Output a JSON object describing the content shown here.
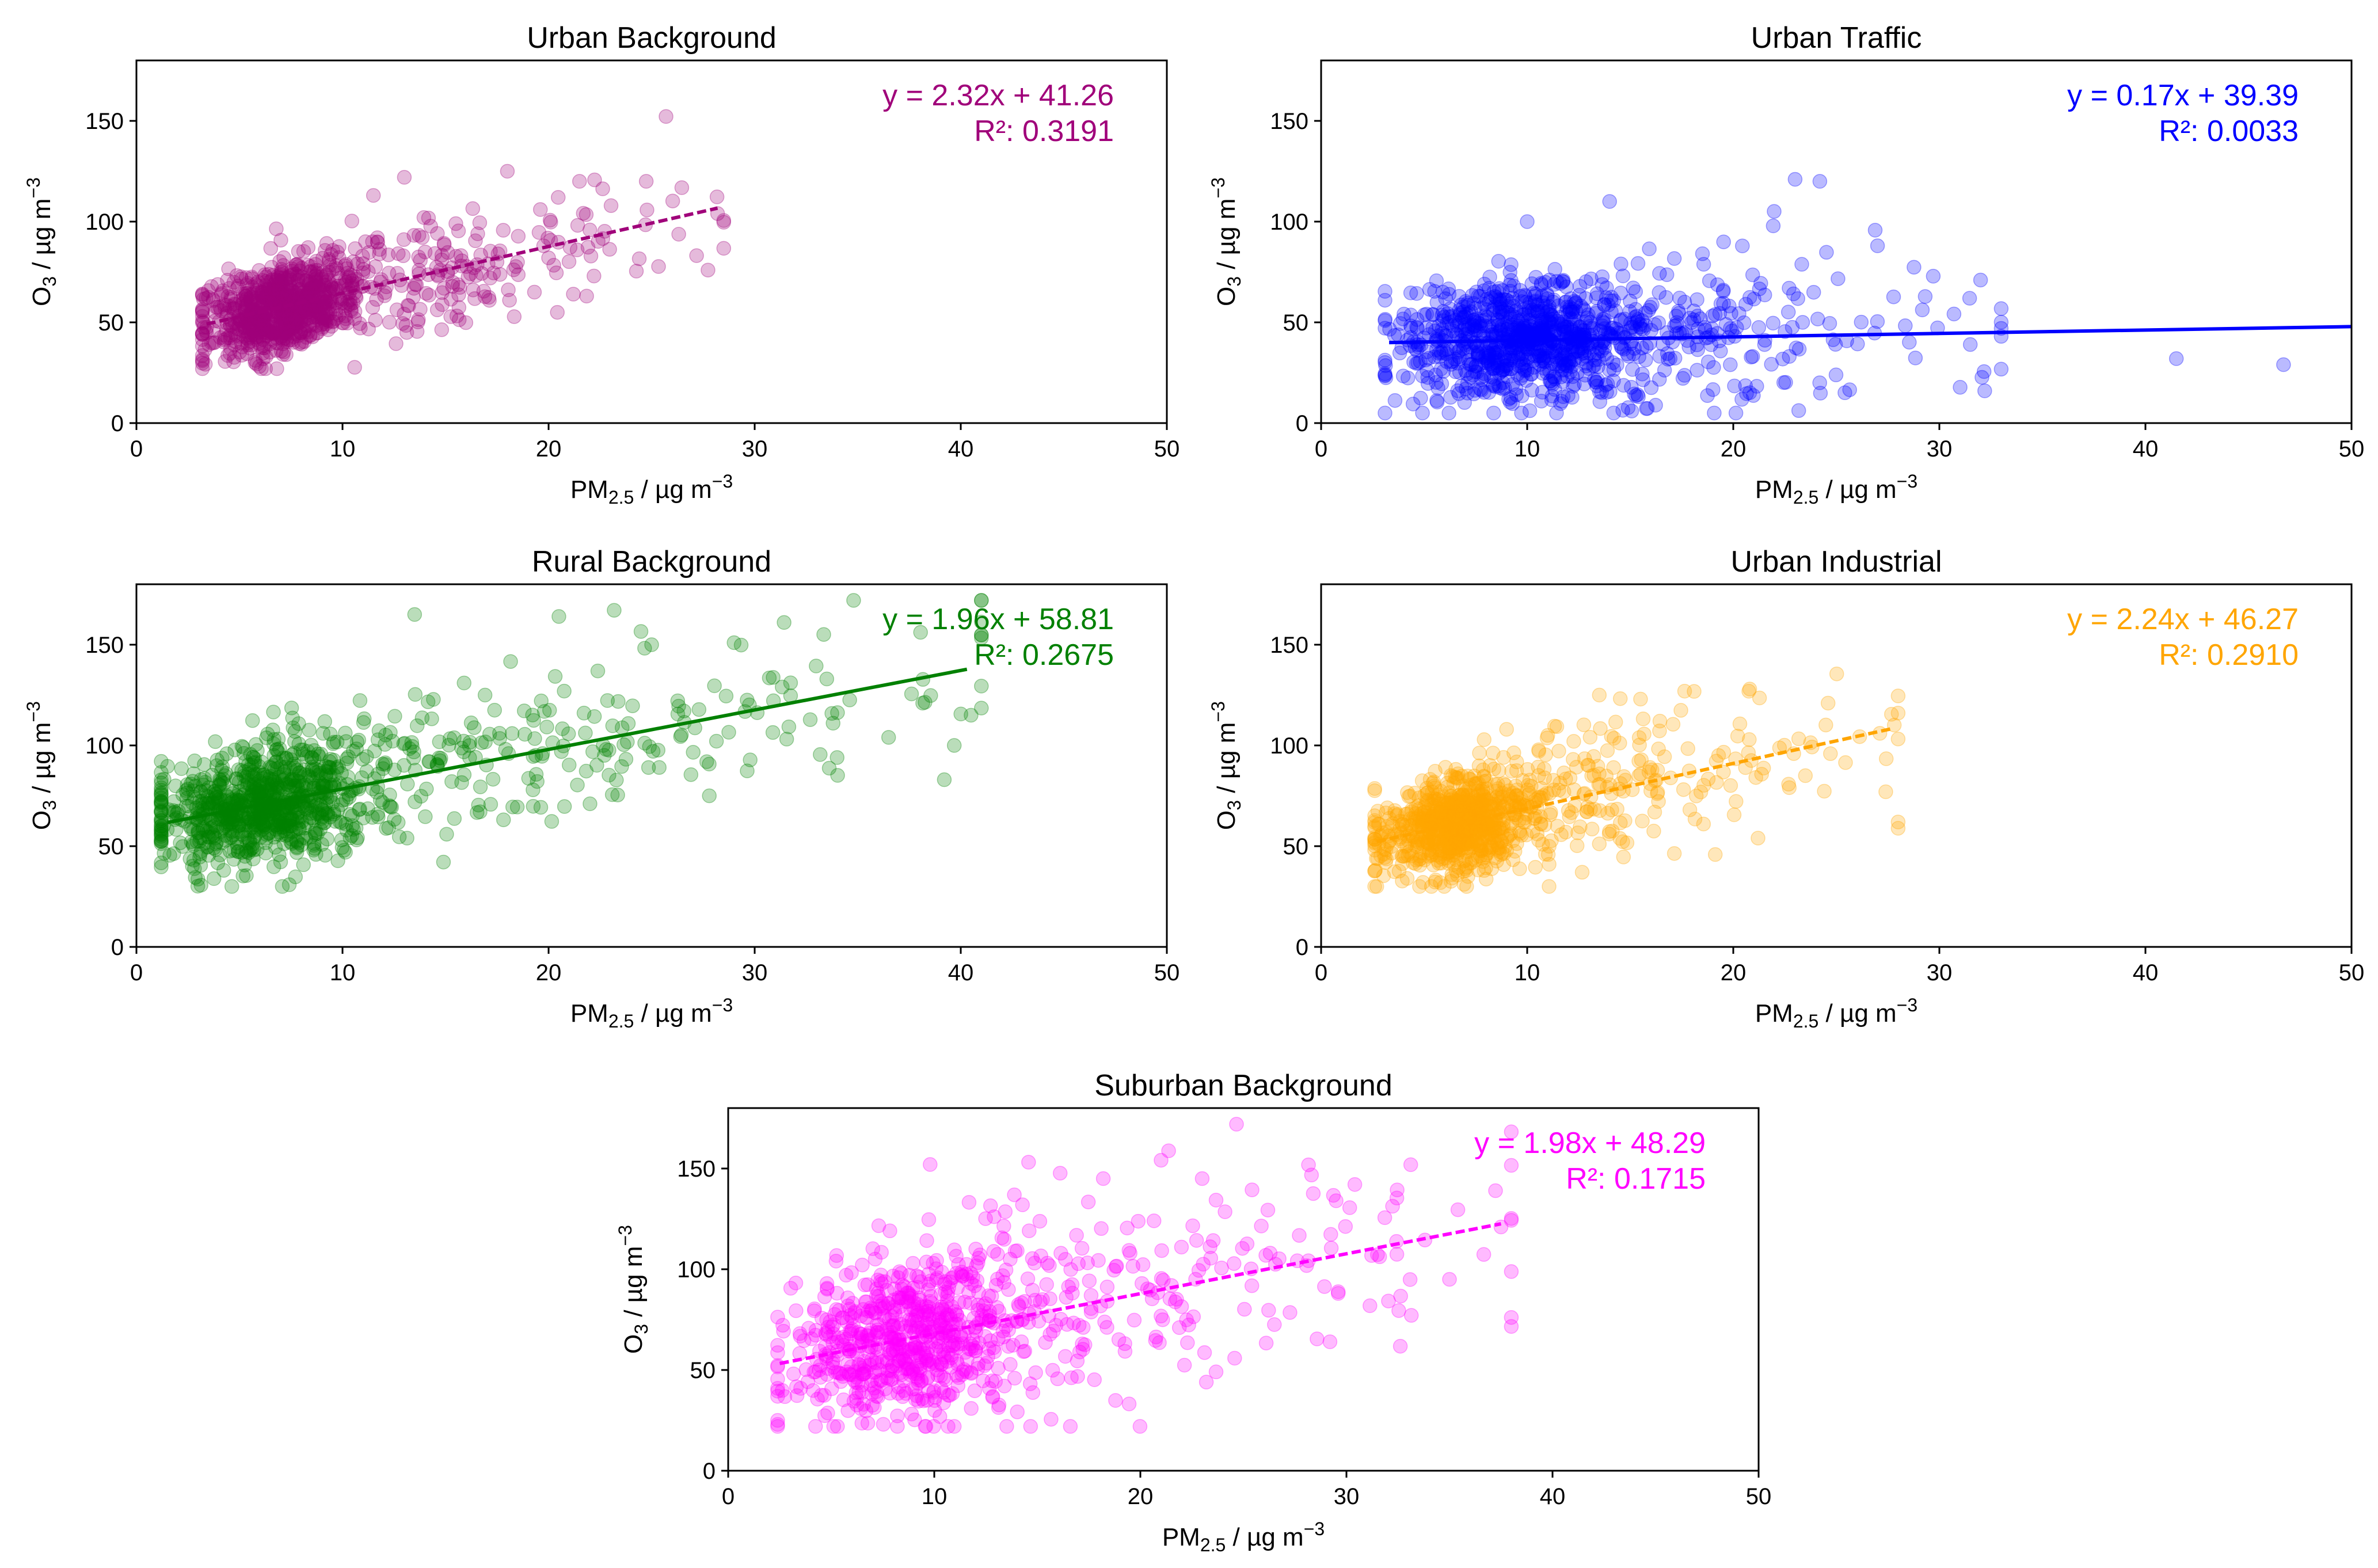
{
  "chart_data": [
    {
      "type": "scatter",
      "title": "Urban Background",
      "xlabel": "PM2.5 / µg m−3",
      "ylabel": "O3 / µg m−3",
      "xlim": [
        0,
        50
      ],
      "ylim": [
        0,
        180
      ],
      "xticks": [
        "0",
        "10",
        "20",
        "30",
        "40",
        "50"
      ],
      "yticks": [
        "0",
        "50",
        "100",
        "150"
      ],
      "color": "#a0007a",
      "fit": {
        "slope": 2.32,
        "intercept": 41.26,
        "x_range": [
          3.4,
          28.2
        ],
        "style": "dashed"
      },
      "equation": "y = 2.32x + 41.26",
      "r2": "R²: 0.3191",
      "cloud": {
        "seed": 11,
        "n": 1000,
        "x_mode": 6.8,
        "x_spread": 1.8,
        "x_max": 28.5,
        "x_min": 3.2,
        "resid_sd": 11,
        "y_min": 27
      },
      "outliers": [
        [
          28.2,
          104
        ],
        [
          21.5,
          120
        ],
        [
          22.2,
          73
        ],
        [
          21.2,
          64
        ],
        [
          18,
          125
        ],
        [
          19.6,
          106
        ],
        [
          13,
          122
        ],
        [
          11.5,
          113
        ],
        [
          15.5,
          99
        ],
        [
          20,
          82
        ]
      ]
    },
    {
      "type": "scatter",
      "title": "Urban Traffic",
      "xlabel": "PM2.5 / µg m−3",
      "ylabel": "O3 / µg m−3",
      "xlim": [
        0,
        50
      ],
      "ylim": [
        0,
        180
      ],
      "xticks": [
        "0",
        "10",
        "20",
        "30",
        "40",
        "50"
      ],
      "yticks": [
        "0",
        "50",
        "100",
        "150"
      ],
      "color": "#0000ff",
      "fit": {
        "slope": 0.17,
        "intercept": 39.39,
        "x_range": [
          3.3,
          50
        ],
        "style": "solid"
      },
      "equation": "y = 0.17x + 39.39",
      "r2": "R²: 0.0033",
      "cloud": {
        "seed": 23,
        "n": 1100,
        "x_mode": 9.5,
        "x_spread": 3.0,
        "x_max": 33,
        "x_min": 3.1,
        "resid_sd": 14,
        "y_min": 5
      },
      "outliers": [
        [
          46.7,
          29
        ],
        [
          41.5,
          32
        ],
        [
          32.2,
          16
        ],
        [
          32,
          71
        ],
        [
          23,
          121
        ],
        [
          24.2,
          120
        ],
        [
          14,
          110
        ],
        [
          10,
          100
        ],
        [
          27,
          88
        ],
        [
          31.5,
          39
        ]
      ]
    },
    {
      "type": "scatter",
      "title": "Rural Background",
      "xlabel": "PM2.5 / µg m−3",
      "ylabel": "O3 / µg m−3",
      "xlim": [
        0,
        50
      ],
      "ylim": [
        0,
        180
      ],
      "xticks": [
        "0",
        "10",
        "20",
        "30",
        "40",
        "50"
      ],
      "yticks": [
        "0",
        "50",
        "100",
        "150"
      ],
      "color": "#008000",
      "fit": {
        "slope": 1.96,
        "intercept": 58.81,
        "x_range": [
          1.5,
          40.3
        ],
        "style": "solid"
      },
      "equation": "y = 1.96x + 58.81",
      "r2": "R²: 0.2675",
      "cloud": {
        "seed": 37,
        "n": 1100,
        "x_mode": 5.8,
        "x_spread": 2.6,
        "x_max": 41,
        "x_min": 1.2,
        "resid_sd": 15,
        "y_min": 30
      },
      "outliers": [
        [
          40.5,
          115
        ],
        [
          39.2,
          83
        ],
        [
          36.5,
          104
        ],
        [
          34,
          94
        ],
        [
          33.5,
          133
        ],
        [
          29,
          151
        ],
        [
          20.5,
          164
        ],
        [
          13.5,
          165
        ],
        [
          27.8,
          75
        ],
        [
          25,
          150
        ]
      ]
    },
    {
      "type": "scatter",
      "title": "Urban Industrial",
      "xlabel": "PM2.5 / µg m−3",
      "ylabel": "O3 / µg m−3",
      "xlim": [
        0,
        50
      ],
      "ylim": [
        0,
        180
      ],
      "xticks": [
        "0",
        "10",
        "20",
        "30",
        "40",
        "50"
      ],
      "yticks": [
        "0",
        "50",
        "100",
        "150"
      ],
      "color": "#ffa500",
      "fit": {
        "slope": 2.24,
        "intercept": 46.27,
        "x_range": [
          2.7,
          27.8
        ],
        "style": "dashed"
      },
      "equation": "y = 2.24x + 46.27",
      "r2": "R²: 0.2910",
      "cloud": {
        "seed": 53,
        "n": 1000,
        "x_mode": 6.5,
        "x_spread": 1.9,
        "x_max": 28,
        "x_min": 2.6,
        "resid_sd": 12,
        "y_min": 30
      },
      "outliers": [
        [
          28,
          62
        ],
        [
          27.4,
          77
        ],
        [
          24.6,
          121
        ],
        [
          20.8,
          128
        ],
        [
          21.2,
          54
        ],
        [
          15.5,
          123
        ],
        [
          13.5,
          125
        ],
        [
          23.5,
          85
        ],
        [
          11,
          105
        ],
        [
          9,
          108
        ]
      ]
    },
    {
      "type": "scatter",
      "title": "Suburban Background",
      "xlabel": "PM2.5 / µg m−3",
      "ylabel": "O3 / µg m−3",
      "xlim": [
        0,
        50
      ],
      "ylim": [
        0,
        180
      ],
      "xticks": [
        "0",
        "10",
        "20",
        "30",
        "40",
        "50"
      ],
      "yticks": [
        "0",
        "50",
        "100",
        "150"
      ],
      "color": "#ff00ff",
      "fit": {
        "slope": 1.98,
        "intercept": 48.29,
        "x_range": [
          2.5,
          37.5
        ],
        "style": "dashed"
      },
      "equation": "y = 1.98x + 48.29",
      "r2": "R²: 0.1715",
      "cloud": {
        "seed": 71,
        "n": 900,
        "x_mode": 8.5,
        "x_spread": 2.8,
        "x_max": 38,
        "x_min": 2.4,
        "resid_sd": 20,
        "y_min": 22
      },
      "outliers": [
        [
          37.5,
          121
        ],
        [
          35,
          95
        ],
        [
          29.5,
          134
        ],
        [
          29.2,
          64
        ],
        [
          23,
          145
        ],
        [
          18.2,
          145
        ],
        [
          9.8,
          152
        ],
        [
          23.2,
          44
        ],
        [
          29.6,
          88
        ],
        [
          26.3,
          108
        ]
      ]
    }
  ]
}
